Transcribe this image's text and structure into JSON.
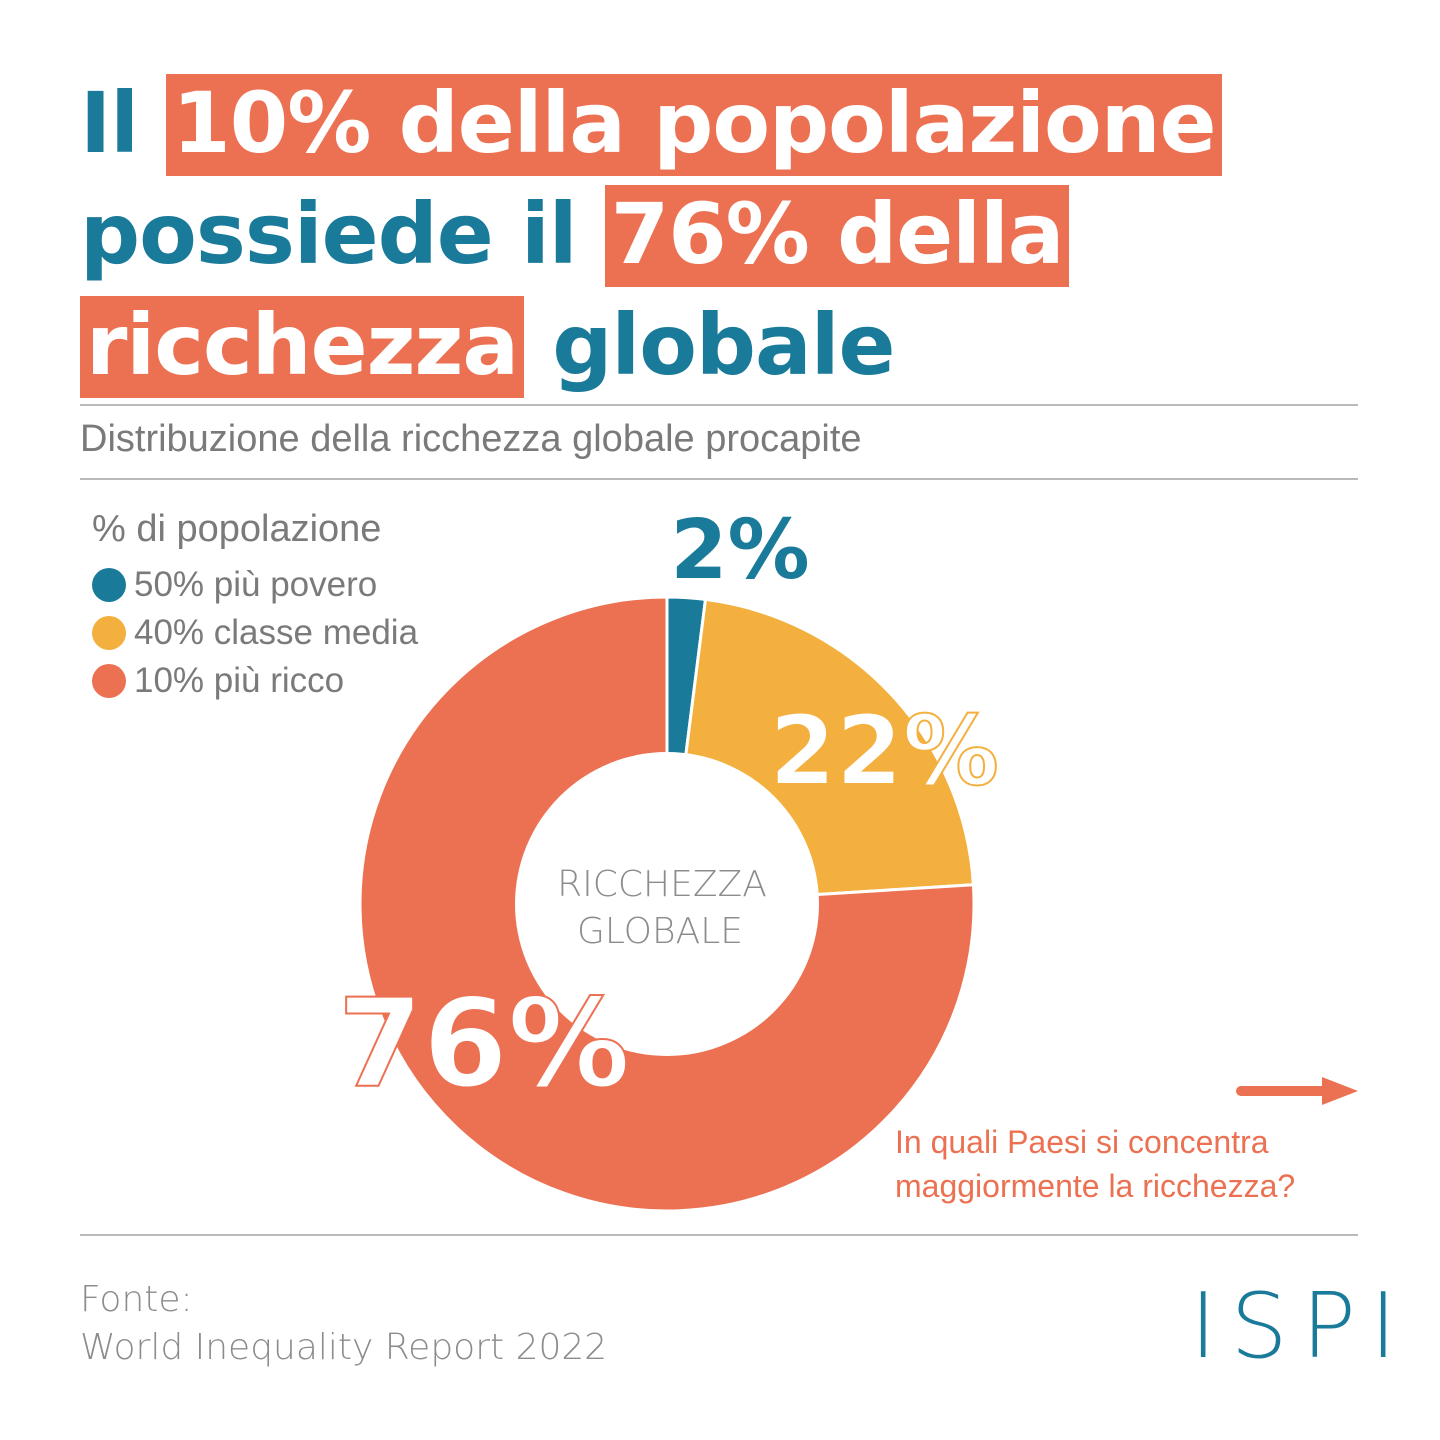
{
  "headline": {
    "seg1": "Il ",
    "hl1": "10% della popolazione",
    "seg2": " possiede il ",
    "hl2": "76% della ricchezza",
    "seg3": " globale"
  },
  "subtitle": "Distribuzione della ricchezza globale procapite",
  "legend": {
    "title": "% di popolazione",
    "items": [
      {
        "label": "50% più povero",
        "color": "#1a7a9a"
      },
      {
        "label": "40% classe media",
        "color": "#f3b03f"
      },
      {
        "label": "10% più ricco",
        "color": "#ec7152"
      }
    ]
  },
  "chart_data": {
    "type": "pie",
    "variant": "donut",
    "center_label": [
      "RICCHEZZA",
      "GLOBALE"
    ],
    "slices": [
      {
        "name": "50% più povero",
        "value": 2,
        "label": "2%",
        "color": "#1a7a9a"
      },
      {
        "name": "40% classe media",
        "value": 22,
        "label": "22%",
        "color": "#f3b03f"
      },
      {
        "name": "10% più ricco",
        "value": 76,
        "label": "76%",
        "color": "#ec7152"
      }
    ],
    "legend_position": "top-left"
  },
  "cta": {
    "line1": "In quali Paesi si concentra",
    "line2": "maggiormente la ricchezza?",
    "arrow_icon": "arrow-right-icon"
  },
  "source": {
    "label": "Fonte:",
    "text": "World Inequality Report 2022"
  },
  "logo": "ISPI"
}
